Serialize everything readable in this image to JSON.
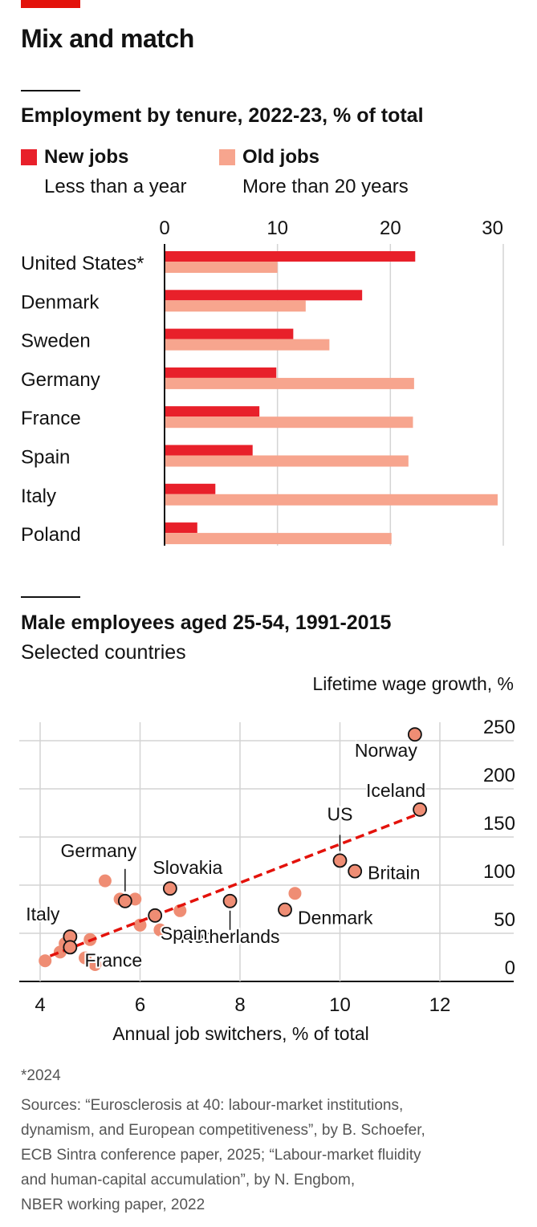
{
  "headline": "Mix and match",
  "colors": {
    "accent": "#e3120b",
    "new_jobs": "#e8202a",
    "old_jobs": "#f7a58e",
    "dot": "#ef8d74",
    "trend": "#e3120b"
  },
  "chart_data": [
    {
      "type": "bar",
      "title": "Employment by tenure, 2022-23, % of total",
      "legend": [
        {
          "name": "New jobs",
          "sub": "Less than a year"
        },
        {
          "name": "Old jobs",
          "sub": "More than 20 years"
        }
      ],
      "categories": [
        "United States*",
        "Denmark",
        "Sweden",
        "Germany",
        "France",
        "Spain",
        "Italy",
        "Poland"
      ],
      "series": [
        {
          "name": "New jobs",
          "values": [
            22.2,
            17.5,
            11.4,
            9.9,
            8.4,
            7.8,
            4.5,
            2.9
          ]
        },
        {
          "name": "Old jobs",
          "values": [
            10.0,
            12.5,
            14.6,
            22.1,
            22.0,
            21.6,
            29.5,
            20.1
          ]
        }
      ],
      "xlim": [
        0,
        30
      ],
      "xticks": [
        "0",
        "10",
        "20",
        "30"
      ]
    },
    {
      "type": "scatter",
      "title": "Male employees aged 25-54, 1991-2015",
      "subtitle": "Selected countries",
      "xlabel": "Annual job switchers, % of total",
      "ylabel": "Lifetime wage growth, %",
      "xlim": [
        3.6,
        13.4
      ],
      "ylim": [
        0,
        250
      ],
      "xticks": [
        "4",
        "6",
        "8",
        "10",
        "12"
      ],
      "yticks": [
        "0",
        "50",
        "100",
        "150",
        "200",
        "250"
      ],
      "labeled_points": [
        {
          "label": "Norway",
          "x": 11.5,
          "y": 244
        },
        {
          "label": "Iceland",
          "x": 11.6,
          "y": 166
        },
        {
          "label": "US",
          "x": 10.0,
          "y": 113
        },
        {
          "label": "Britain",
          "x": 10.3,
          "y": 102
        },
        {
          "label": "Denmark",
          "x": 8.9,
          "y": 62
        },
        {
          "label": "Netherlands",
          "x": 7.8,
          "y": 71
        },
        {
          "label": "Slovakia",
          "x": 6.6,
          "y": 84
        },
        {
          "label": "Germany",
          "x": 5.7,
          "y": 71
        },
        {
          "label": "Spain",
          "x": 6.3,
          "y": 56
        },
        {
          "label": "Italy",
          "x": 4.6,
          "y": 34
        },
        {
          "label": "France",
          "x": 4.6,
          "y": 23
        }
      ],
      "other_points": [
        {
          "x": 5.3,
          "y": 92
        },
        {
          "x": 5.6,
          "y": 73
        },
        {
          "x": 5.9,
          "y": 73
        },
        {
          "x": 6.8,
          "y": 61
        },
        {
          "x": 6.0,
          "y": 46
        },
        {
          "x": 9.1,
          "y": 79
        },
        {
          "x": 4.5,
          "y": 27
        },
        {
          "x": 5.0,
          "y": 31
        },
        {
          "x": 4.1,
          "y": 9
        },
        {
          "x": 4.9,
          "y": 12
        },
        {
          "x": 5.1,
          "y": 5
        },
        {
          "x": 6.4,
          "y": 41
        },
        {
          "x": 4.4,
          "y": 18
        }
      ],
      "trend_line": {
        "x": [
          4.2,
          11.6
        ],
        "y": [
          14,
          162
        ]
      }
    }
  ],
  "footnote": "*2024",
  "sources": [
    "Sources: “Eurosclerosis at 40: labour-market institutions,",
    "dynamism, and European competitiveness”, by B. Schoefer,",
    "ECB Sintra conference paper, 2025; “Labour-market fluidity",
    "and human-capital accumulation”, by N. Engbom,",
    "NBER working paper, 2022"
  ]
}
